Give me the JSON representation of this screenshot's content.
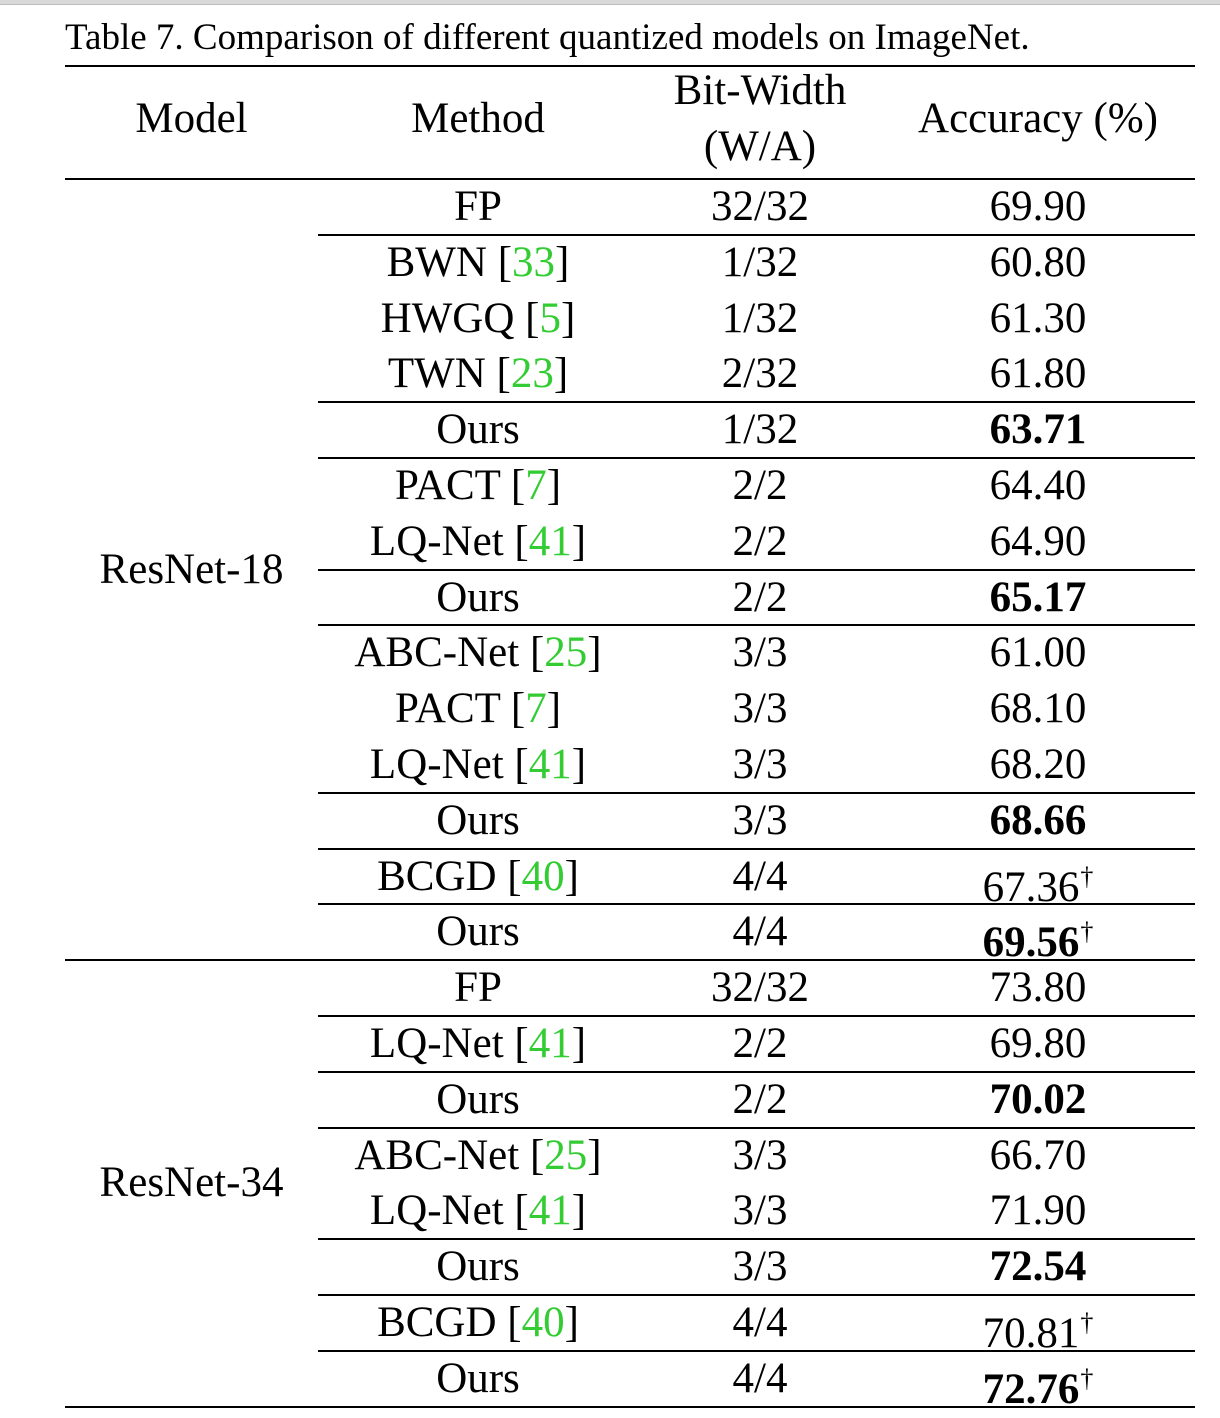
{
  "caption": "Table 7. Comparison of different quantized models on ImageNet.",
  "headers": {
    "model": "Model",
    "method": "Method",
    "bitwidth_line1": "Bit-Width",
    "bitwidth_line2": "(W/A)",
    "accuracy": "Accuracy (%)"
  },
  "groups": [
    {
      "model": "ResNet-18",
      "rows": [
        {
          "method": "FP",
          "ref": "",
          "bits": "32/32",
          "acc": "69.90",
          "bold": false,
          "dagger": false,
          "sep_after": true
        },
        {
          "method": "BWN",
          "ref": "33",
          "bits": "1/32",
          "acc": "60.80",
          "bold": false,
          "dagger": false,
          "sep_after": false
        },
        {
          "method": "HWGQ",
          "ref": "5",
          "bits": "1/32",
          "acc": "61.30",
          "bold": false,
          "dagger": false,
          "sep_after": false
        },
        {
          "method": "TWN",
          "ref": "23",
          "bits": "2/32",
          "acc": "61.80",
          "bold": false,
          "dagger": false,
          "sep_after": true
        },
        {
          "method": "Ours",
          "ref": "",
          "bits": "1/32",
          "acc": "63.71",
          "bold": true,
          "dagger": false,
          "sep_after": true
        },
        {
          "method": "PACT",
          "ref": "7",
          "bits": "2/2",
          "acc": "64.40",
          "bold": false,
          "dagger": false,
          "sep_after": false
        },
        {
          "method": "LQ-Net",
          "ref": "41",
          "bits": "2/2",
          "acc": "64.90",
          "bold": false,
          "dagger": false,
          "sep_after": true
        },
        {
          "method": "Ours",
          "ref": "",
          "bits": "2/2",
          "acc": "65.17",
          "bold": true,
          "dagger": false,
          "sep_after": true
        },
        {
          "method": "ABC-Net",
          "ref": "25",
          "bits": "3/3",
          "acc": "61.00",
          "bold": false,
          "dagger": false,
          "sep_after": false
        },
        {
          "method": "PACT",
          "ref": "7",
          "bits": "3/3",
          "acc": "68.10",
          "bold": false,
          "dagger": false,
          "sep_after": false
        },
        {
          "method": "LQ-Net",
          "ref": "41",
          "bits": "3/3",
          "acc": "68.20",
          "bold": false,
          "dagger": false,
          "sep_after": true
        },
        {
          "method": "Ours",
          "ref": "",
          "bits": "3/3",
          "acc": "68.66",
          "bold": true,
          "dagger": false,
          "sep_after": true
        },
        {
          "method": "BCGD",
          "ref": "40",
          "bits": "4/4",
          "acc": "67.36",
          "bold": false,
          "dagger": true,
          "sep_after": true
        },
        {
          "method": "Ours",
          "ref": "",
          "bits": "4/4",
          "acc": "69.56",
          "bold": true,
          "dagger": true,
          "sep_after": false
        }
      ]
    },
    {
      "model": "ResNet-34",
      "rows": [
        {
          "method": "FP",
          "ref": "",
          "bits": "32/32",
          "acc": "73.80",
          "bold": false,
          "dagger": false,
          "sep_after": true
        },
        {
          "method": "LQ-Net",
          "ref": "41",
          "bits": "2/2",
          "acc": "69.80",
          "bold": false,
          "dagger": false,
          "sep_after": true
        },
        {
          "method": "Ours",
          "ref": "",
          "bits": "2/2",
          "acc": "70.02",
          "bold": true,
          "dagger": false,
          "sep_after": true
        },
        {
          "method": "ABC-Net",
          "ref": "25",
          "bits": "3/3",
          "acc": "66.70",
          "bold": false,
          "dagger": false,
          "sep_after": false
        },
        {
          "method": "LQ-Net",
          "ref": "41",
          "bits": "3/3",
          "acc": "71.90",
          "bold": false,
          "dagger": false,
          "sep_after": true
        },
        {
          "method": "Ours",
          "ref": "",
          "bits": "3/3",
          "acc": "72.54",
          "bold": true,
          "dagger": false,
          "sep_after": true
        },
        {
          "method": "BCGD",
          "ref": "40",
          "bits": "4/4",
          "acc": "70.81",
          "bold": false,
          "dagger": true,
          "sep_after": true
        },
        {
          "method": "Ours",
          "ref": "",
          "bits": "4/4",
          "acc": "72.76",
          "bold": true,
          "dagger": true,
          "sep_after": false
        }
      ]
    }
  ],
  "dagger_symbol": "†",
  "colors": {
    "reference_link": "#33cc33",
    "text": "#000000",
    "rule": "#000000"
  }
}
